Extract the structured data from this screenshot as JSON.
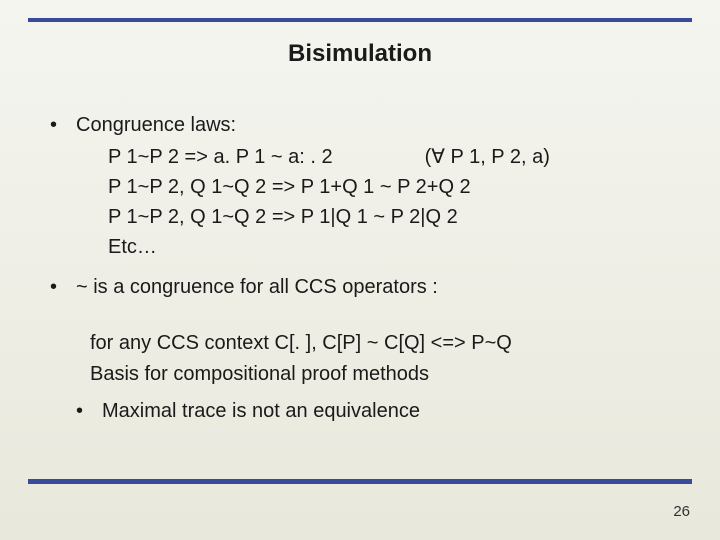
{
  "title": "Bisimulation",
  "bullets": {
    "b1": "Congruence laws:",
    "laws": {
      "l1a": "P 1~P 2  => a. P 1 ~ a: . 2",
      "l1b": "(∀ P 1, P 2, a)",
      "l2": "P 1~P 2,     Q 1~Q 2 => P 1+Q 1 ~ P 2+Q 2",
      "l3": "P 1~P 2,     Q 1~Q 2 => P 1|Q 1 ~ P 2|Q 2",
      "l4": "Etc…"
    },
    "b2": "~ is a congruence for all CCS operators :",
    "sub": {
      "s1": "for any CCS context C[. ],  C[P] ~ C[Q] <=> P~Q",
      "s2": "Basis for compositional proof methods"
    },
    "b3": "Maximal trace is not an equivalence"
  },
  "page": "26",
  "colors": {
    "rule": "#3a4a9a",
    "text": "#1a1a1a",
    "bg_top": "#f5f5f0",
    "bg_bottom": "#e8e8dc"
  },
  "fonts": {
    "title_size_pt": 18,
    "body_size_pt": 15,
    "pagenum_size_pt": 11
  }
}
